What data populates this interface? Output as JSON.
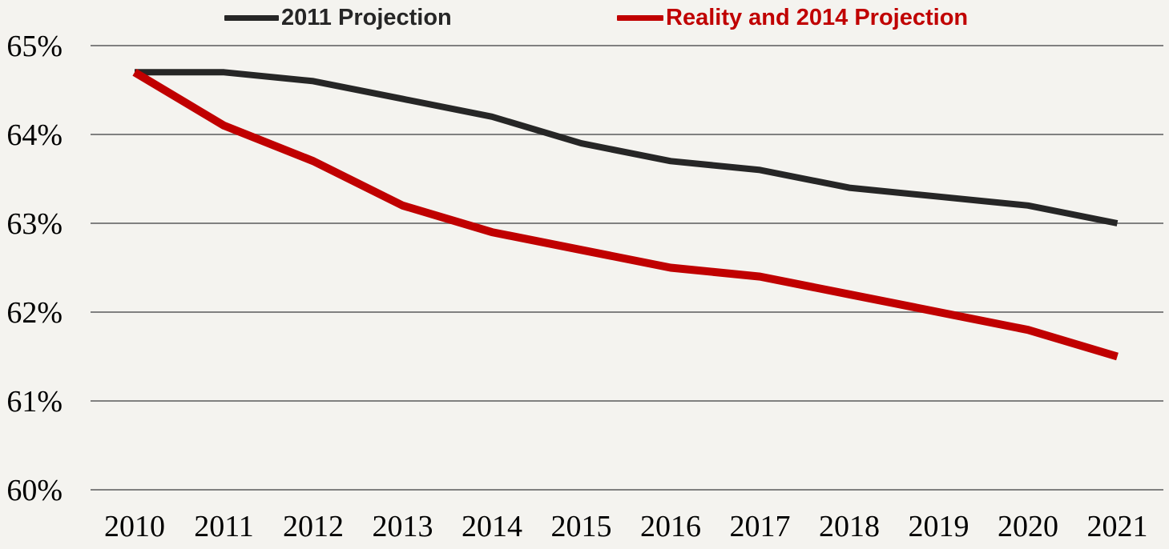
{
  "chart_data": {
    "type": "line",
    "title": "",
    "xlabel": "",
    "ylabel": "",
    "categories": [
      "2010",
      "2011",
      "2012",
      "2013",
      "2014",
      "2015",
      "2016",
      "2017",
      "2018",
      "2019",
      "2020",
      "2021"
    ],
    "series": [
      {
        "name": "2011 Projection",
        "color": "#262626",
        "stroke_width": 8,
        "values": [
          64.7,
          64.7,
          64.6,
          64.4,
          64.2,
          63.9,
          63.7,
          63.6,
          63.4,
          63.3,
          63.2,
          63.0
        ]
      },
      {
        "name": "Reality and 2014 Projection",
        "color": "#c00000",
        "stroke_width": 10,
        "values": [
          64.7,
          64.1,
          63.7,
          63.2,
          62.9,
          62.7,
          62.5,
          62.4,
          62.2,
          62.0,
          61.8,
          61.5
        ]
      }
    ],
    "y_axis": {
      "ticks": [
        {
          "label": "65%",
          "value": 65
        },
        {
          "label": "64%",
          "value": 64
        },
        {
          "label": "63%",
          "value": 63
        },
        {
          "label": "62%",
          "value": 62
        },
        {
          "label": "61%",
          "value": 61
        },
        {
          "label": "60%",
          "value": 60
        }
      ],
      "ylim": [
        60,
        65
      ],
      "unit": "%"
    },
    "grid": "horizontal",
    "gridline_color": "#808080",
    "background_color": "#f4f3ef",
    "tick_label_color": "#000000",
    "legend_position": "top"
  },
  "legend": {
    "items": [
      {
        "label": "2011 Projection",
        "color": "#262626"
      },
      {
        "label": "Reality and 2014 Projection",
        "color": "#c00000"
      }
    ]
  }
}
